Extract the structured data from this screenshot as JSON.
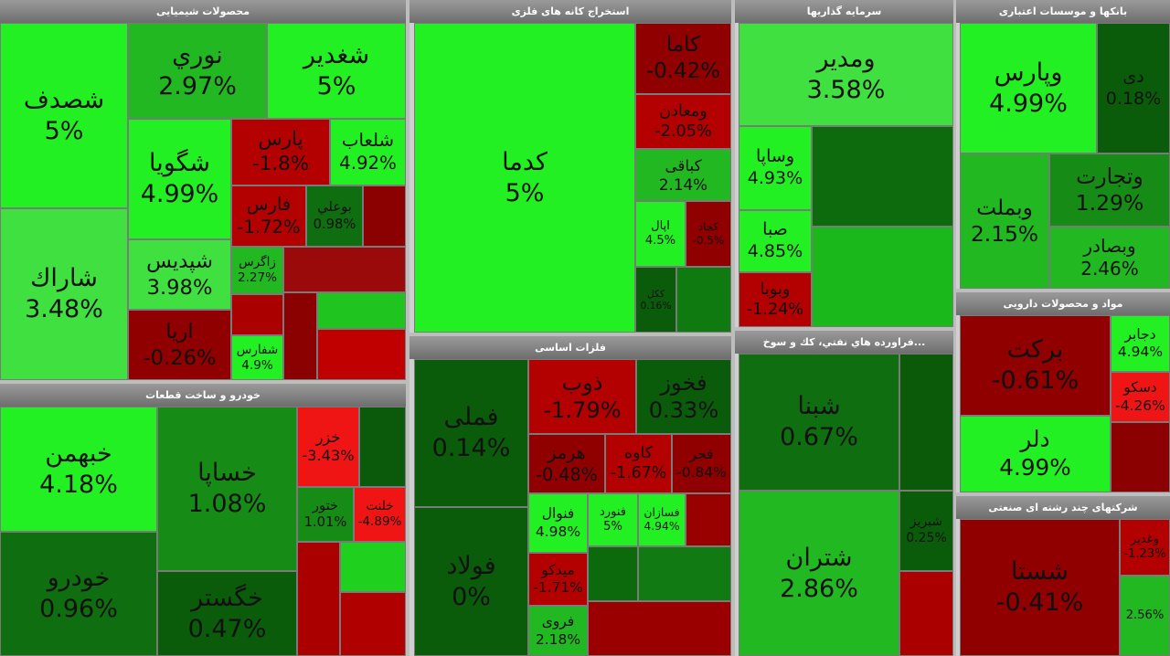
{
  "sectors": [
    {
      "title": "محصولات شیمیایی",
      "tiles": [
        {
          "name": "شصدف",
          "change": "5%"
        },
        {
          "name": "شاراك",
          "change": "3.48%"
        },
        {
          "name": "نوري",
          "change": "2.97%"
        },
        {
          "name": "شغدير",
          "change": "5%"
        },
        {
          "name": "شگويا",
          "change": "4.99%"
        },
        {
          "name": "شپديس",
          "change": "3.98%"
        },
        {
          "name": "اريا",
          "change": "-0.26%"
        },
        {
          "name": "پارس",
          "change": "-1.8%"
        },
        {
          "name": "شلعاب",
          "change": "4.92%"
        },
        {
          "name": "فارس",
          "change": "-1.72%"
        },
        {
          "name": "بوعلي",
          "change": "0.98%"
        },
        {
          "name": "زاگرس",
          "change": "2.27%"
        },
        {
          "name": "شفارس",
          "change": "4.9%"
        }
      ]
    },
    {
      "title": "خودرو و ساخت قطعات",
      "tiles": [
        {
          "name": "خبهمن",
          "change": "4.18%"
        },
        {
          "name": "خودرو",
          "change": "0.96%"
        },
        {
          "name": "خساپا",
          "change": "1.08%"
        },
        {
          "name": "خگستر",
          "change": "0.47%"
        },
        {
          "name": "خزر",
          "change": "-3.43%"
        },
        {
          "name": "ختور",
          "change": "1.01%"
        },
        {
          "name": "خلنت",
          "change": "-4.89%"
        }
      ]
    },
    {
      "title": "استخراج کانه های فلزی",
      "tiles": [
        {
          "name": "کدما",
          "change": "5%"
        },
        {
          "name": "کاما",
          "change": "-0.42%"
        },
        {
          "name": "ومعادن",
          "change": "-2.05%"
        },
        {
          "name": "کباقی",
          "change": "2.14%"
        },
        {
          "name": "اپال",
          "change": "4.5%"
        },
        {
          "name": "کچاد",
          "change": "-0.5%"
        },
        {
          "name": "ککل",
          "change": "0.16%"
        }
      ]
    },
    {
      "title": "فلزات اساسی",
      "tiles": [
        {
          "name": "فملی",
          "change": "0.14%"
        },
        {
          "name": "فولاد",
          "change": "0%"
        },
        {
          "name": "ذوب",
          "change": "-1.79%"
        },
        {
          "name": "فخوز",
          "change": "0.33%"
        },
        {
          "name": "هرمز",
          "change": "-0.48%"
        },
        {
          "name": "کاوه",
          "change": "-1.67%"
        },
        {
          "name": "فجر",
          "change": "-0.84%"
        },
        {
          "name": "فنوال",
          "change": "4.98%"
        },
        {
          "name": "فنورد",
          "change": "5%"
        },
        {
          "name": "فسازان",
          "change": "4.94%"
        },
        {
          "name": "میدکو",
          "change": "-1.71%"
        },
        {
          "name": "فروی",
          "change": "2.18%"
        }
      ]
    },
    {
      "title": "سرمایه گذاریها",
      "tiles": [
        {
          "name": "ومدیر",
          "change": "3.58%"
        },
        {
          "name": "وساپا",
          "change": "4.93%"
        },
        {
          "name": "صبا",
          "change": "4.85%"
        },
        {
          "name": "وبوبا",
          "change": "-1.24%"
        }
      ]
    },
    {
      "title": "...فراورده هاي نفتي، كك و سوخ",
      "tiles": [
        {
          "name": "شبنا",
          "change": "0.67%"
        },
        {
          "name": "شتران",
          "change": "2.86%"
        },
        {
          "name": "شبریز",
          "change": "0.25%"
        }
      ]
    },
    {
      "title": "بانکها و موسسات اعتباری",
      "tiles": [
        {
          "name": "وپارس",
          "change": "4.99%"
        },
        {
          "name": "دی",
          "change": "0.18%"
        },
        {
          "name": "وبملت",
          "change": "2.15%"
        },
        {
          "name": "وتجارت",
          "change": "1.29%"
        },
        {
          "name": "وبصادر",
          "change": "2.46%"
        }
      ]
    },
    {
      "title": "مواد و محصولات دارویی",
      "tiles": [
        {
          "name": "برکت",
          "change": "-0.61%"
        },
        {
          "name": "دلر",
          "change": "4.99%"
        },
        {
          "name": "دجابر",
          "change": "4.94%"
        },
        {
          "name": "دسکو",
          "change": "-4.26%"
        }
      ]
    },
    {
      "title": "شرکتهای چند رشته ای صنعتی",
      "tiles": [
        {
          "name": "شستا",
          "change": "-0.41%"
        },
        {
          "name": "وغدیر",
          "change": "-1.23%"
        },
        {
          "change": "2.56%"
        }
      ]
    }
  ]
}
